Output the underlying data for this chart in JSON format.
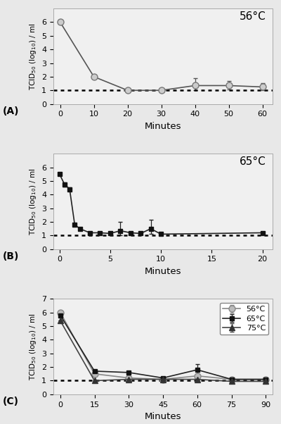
{
  "panel_A": {
    "title": "56°C",
    "label": "(A)",
    "x": [
      0,
      10,
      20,
      30,
      40,
      50,
      60
    ],
    "y": [
      6.0,
      2.0,
      1.0,
      1.0,
      1.35,
      1.35,
      1.25
    ],
    "yerr_lo": [
      0,
      0,
      0,
      0,
      0.35,
      0.3,
      0.25
    ],
    "yerr_hi": [
      0,
      0,
      0,
      0,
      0.55,
      0.35,
      0.3
    ],
    "xlim": [
      -2,
      63
    ],
    "xticks": [
      0,
      10,
      20,
      30,
      40,
      50,
      60
    ],
    "ylim": [
      0,
      7
    ],
    "yticks": [
      0,
      1,
      2,
      3,
      4,
      5,
      6
    ],
    "dashed_y": 1.0,
    "xlabel": "Minutes",
    "ylabel": "TCID$_{50}$ (log$_{10}$) / ml"
  },
  "panel_B": {
    "title": "65°C",
    "label": "(B)",
    "x": [
      0,
      0.5,
      1,
      1.5,
      2,
      3,
      4,
      5,
      6,
      7,
      8,
      9,
      10,
      20
    ],
    "y": [
      5.5,
      4.75,
      4.4,
      1.8,
      1.5,
      1.2,
      1.2,
      1.15,
      1.35,
      1.2,
      1.15,
      1.5,
      1.1,
      1.2
    ],
    "yerr_lo": [
      0.1,
      0.15,
      0.12,
      0,
      0,
      0,
      0,
      0,
      0.35,
      0,
      0,
      0.4,
      0,
      0
    ],
    "yerr_hi": [
      0.1,
      0.15,
      0.12,
      0,
      0,
      0,
      0,
      0,
      0.65,
      0,
      0,
      0.65,
      0,
      0
    ],
    "xlim": [
      -0.6,
      21
    ],
    "xticks": [
      0,
      5,
      10,
      15,
      20
    ],
    "ylim": [
      0,
      7
    ],
    "yticks": [
      0,
      1,
      2,
      3,
      4,
      5,
      6
    ],
    "dashed_y": 1.0,
    "xlabel": "Minutes",
    "ylabel": "TCID$_{50}$ (log$_{10}$) / ml"
  },
  "panel_C": {
    "label": "(C)",
    "series": [
      {
        "label": "56°C",
        "x": [
          0,
          15,
          30,
          45,
          60,
          75,
          90
        ],
        "y": [
          6.0,
          1.5,
          1.2,
          1.1,
          1.35,
          1.1,
          1.1
        ],
        "yerr_lo": [
          0,
          0,
          0,
          0,
          0.3,
          0,
          0
        ],
        "yerr_hi": [
          0,
          0,
          0,
          0,
          0.4,
          0,
          0
        ],
        "marker": "o",
        "color": "#888888",
        "mfc": "#bbbbbb",
        "mec": "#888888"
      },
      {
        "label": "65°C",
        "x": [
          0,
          15,
          30,
          45,
          60,
          75,
          90
        ],
        "y": [
          5.8,
          1.7,
          1.6,
          1.2,
          1.8,
          1.1,
          1.1
        ],
        "yerr_lo": [
          0,
          0,
          0,
          0,
          0.4,
          0,
          0
        ],
        "yerr_hi": [
          0,
          0,
          0,
          0,
          0.4,
          0,
          0
        ],
        "marker": "s",
        "color": "#222222",
        "mfc": "#111111",
        "mec": "#111111"
      },
      {
        "label": "75°C",
        "x": [
          0,
          15,
          30,
          45,
          60,
          75,
          90
        ],
        "y": [
          5.4,
          1.0,
          1.1,
          1.1,
          1.1,
          0.95,
          0.95
        ],
        "yerr_lo": [
          0,
          0,
          0,
          0,
          0,
          0,
          0
        ],
        "yerr_hi": [
          0,
          0,
          0,
          0,
          0,
          0,
          0
        ],
        "marker": "^",
        "color": "#444444",
        "mfc": "#333333",
        "mec": "#333333"
      }
    ],
    "xlim": [
      -3,
      93
    ],
    "xticks": [
      0,
      15,
      30,
      45,
      60,
      75,
      90
    ],
    "ylim": [
      0,
      7
    ],
    "yticks": [
      0,
      1,
      2,
      3,
      4,
      5,
      6,
      7
    ],
    "dashed_y": 1.0,
    "xlabel": "Minutes",
    "ylabel": "TCID$_{50}$ (log$_{10}$) / ml"
  },
  "fig_bg": "#e8e8e8",
  "axes_bg": "#f0f0f0"
}
